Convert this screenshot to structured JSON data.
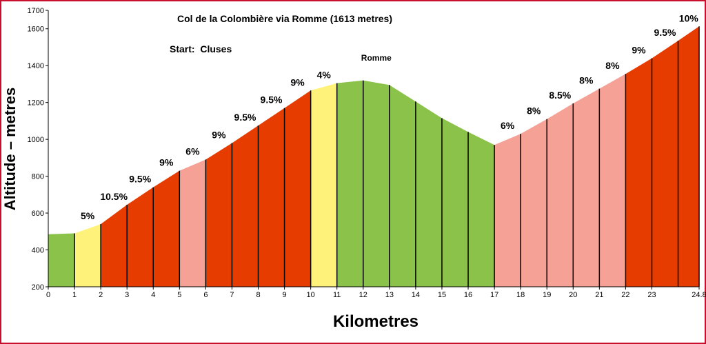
{
  "chart_data": {
    "type": "area",
    "title": "Col de la Colombière via Romme (1613 metres)",
    "subtitle": "Start:  Cluses",
    "xlabel": "Kilometres",
    "ylabel": "Altitude – metres",
    "xlim": [
      0,
      24.8
    ],
    "ylim": [
      200,
      1700
    ],
    "x_ticks": [
      0,
      1,
      2,
      3,
      4,
      5,
      6,
      7,
      8,
      9,
      10,
      11,
      12,
      13,
      14,
      15,
      16,
      17,
      18,
      19,
      20,
      21,
      22,
      23,
      24.8
    ],
    "y_ticks": [
      200,
      400,
      600,
      800,
      1000,
      1200,
      1400,
      1600,
      1700
    ],
    "profile": [
      {
        "x": 0,
        "y": 485
      },
      {
        "x": 1,
        "y": 490
      },
      {
        "x": 2,
        "y": 540
      },
      {
        "x": 3,
        "y": 645
      },
      {
        "x": 4,
        "y": 740
      },
      {
        "x": 5,
        "y": 830
      },
      {
        "x": 6,
        "y": 890
      },
      {
        "x": 7,
        "y": 980
      },
      {
        "x": 8,
        "y": 1075
      },
      {
        "x": 9,
        "y": 1170
      },
      {
        "x": 10,
        "y": 1265
      },
      {
        "x": 11,
        "y": 1305
      },
      {
        "x": 12,
        "y": 1320
      },
      {
        "x": 13,
        "y": 1295
      },
      {
        "x": 14,
        "y": 1205
      },
      {
        "x": 15,
        "y": 1115
      },
      {
        "x": 16,
        "y": 1040
      },
      {
        "x": 17,
        "y": 970
      },
      {
        "x": 18,
        "y": 1030
      },
      {
        "x": 19,
        "y": 1110
      },
      {
        "x": 20,
        "y": 1195
      },
      {
        "x": 21,
        "y": 1275
      },
      {
        "x": 22,
        "y": 1355
      },
      {
        "x": 23,
        "y": 1440
      },
      {
        "x": 24,
        "y": 1535
      },
      {
        "x": 24.8,
        "y": 1613
      }
    ],
    "segments": [
      {
        "from": 0,
        "to": 1,
        "color": "#8bc34a",
        "label": ""
      },
      {
        "from": 1,
        "to": 2,
        "color": "#fff27a",
        "label": "5%"
      },
      {
        "from": 2,
        "to": 3,
        "color": "#e63c00",
        "label": "10.5%"
      },
      {
        "from": 3,
        "to": 4,
        "color": "#e63c00",
        "label": "9.5%"
      },
      {
        "from": 4,
        "to": 5,
        "color": "#e63c00",
        "label": "9%"
      },
      {
        "from": 5,
        "to": 6,
        "color": "#f6a196",
        "label": "6%"
      },
      {
        "from": 6,
        "to": 7,
        "color": "#e63c00",
        "label": "9%"
      },
      {
        "from": 7,
        "to": 8,
        "color": "#e63c00",
        "label": "9.5%"
      },
      {
        "from": 8,
        "to": 9,
        "color": "#e63c00",
        "label": "9.5%"
      },
      {
        "from": 9,
        "to": 10,
        "color": "#e63c00",
        "label": "9%"
      },
      {
        "from": 10,
        "to": 11,
        "color": "#fff27a",
        "label": "4%"
      },
      {
        "from": 11,
        "to": 12,
        "color": "#8bc34a",
        "label": ""
      },
      {
        "from": 12,
        "to": 13,
        "color": "#8bc34a",
        "label": ""
      },
      {
        "from": 13,
        "to": 14,
        "color": "#8bc34a",
        "label": ""
      },
      {
        "from": 14,
        "to": 15,
        "color": "#8bc34a",
        "label": ""
      },
      {
        "from": 15,
        "to": 16,
        "color": "#8bc34a",
        "label": ""
      },
      {
        "from": 16,
        "to": 17,
        "color": "#8bc34a",
        "label": ""
      },
      {
        "from": 17,
        "to": 18,
        "color": "#f6a196",
        "label": "6%"
      },
      {
        "from": 18,
        "to": 19,
        "color": "#f6a196",
        "label": "8%"
      },
      {
        "from": 19,
        "to": 20,
        "color": "#f6a196",
        "label": "8.5%"
      },
      {
        "from": 20,
        "to": 21,
        "color": "#f6a196",
        "label": "8%"
      },
      {
        "from": 21,
        "to": 22,
        "color": "#f6a196",
        "label": "8%"
      },
      {
        "from": 22,
        "to": 23,
        "color": "#e63c00",
        "label": "9%"
      },
      {
        "from": 23,
        "to": 24,
        "color": "#e63c00",
        "label": "9.5%"
      },
      {
        "from": 24,
        "to": 24.8,
        "color": "#e63c00",
        "label": "10%"
      }
    ],
    "annotations": [
      {
        "text": "Romme",
        "x": 12.5,
        "y": 1330
      }
    ],
    "grid": false,
    "frame_color": "#c8102e"
  }
}
